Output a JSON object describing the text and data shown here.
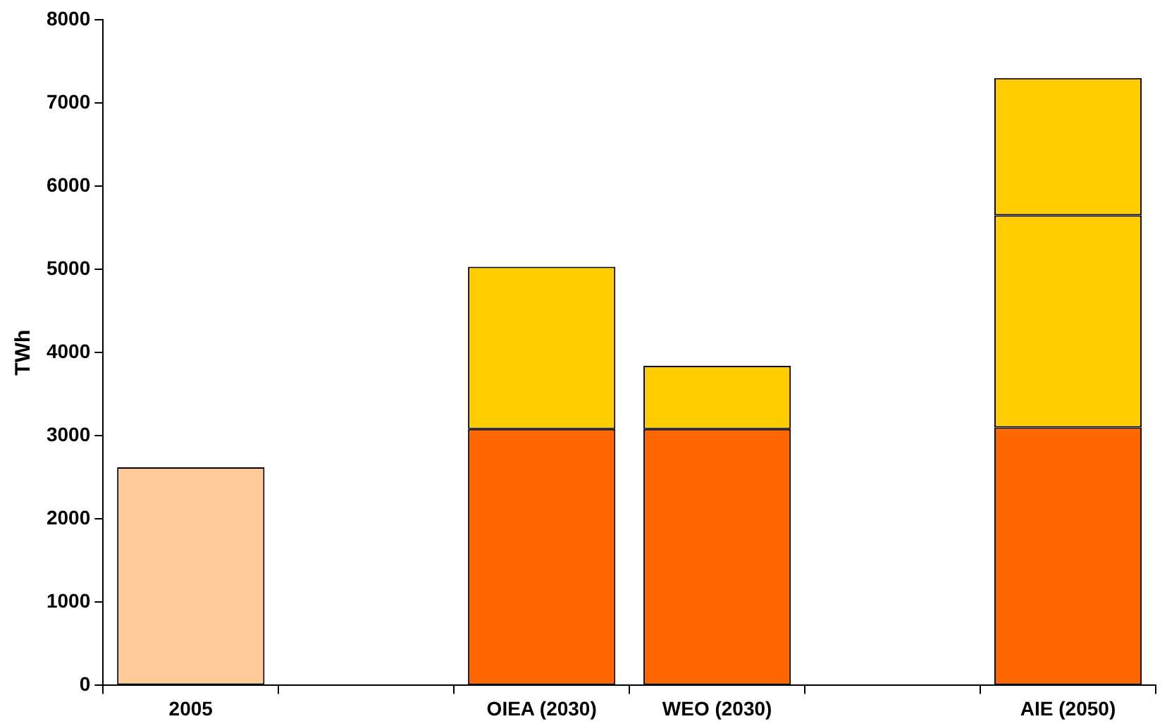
{
  "chart_data": {
    "type": "bar",
    "ylabel": "TWh",
    "categories": [
      "2005",
      null,
      "OIEA (2030)",
      "WEO (2030)",
      null,
      "AIE (2050)"
    ],
    "stacked": true,
    "ylim": [
      0,
      8000
    ],
    "yticks": [
      0,
      1000,
      2000,
      3000,
      4000,
      5000,
      6000,
      7000,
      8000
    ],
    "grid": false,
    "legend": false,
    "series": [
      {
        "colors": [
          "#ffcc99",
          "#ff6600",
          "#ff6600",
          "#ff6600",
          "#ff6600",
          "#ff6600"
        ],
        "values": [
          2620,
          null,
          3080,
          3080,
          null,
          3100
        ]
      },
      {
        "color": "#ffcc00",
        "values": [
          null,
          null,
          1950,
          760,
          null,
          2550
        ]
      },
      {
        "color": "#ffcc00",
        "values": [
          null,
          null,
          null,
          null,
          null,
          1650
        ]
      }
    ]
  }
}
